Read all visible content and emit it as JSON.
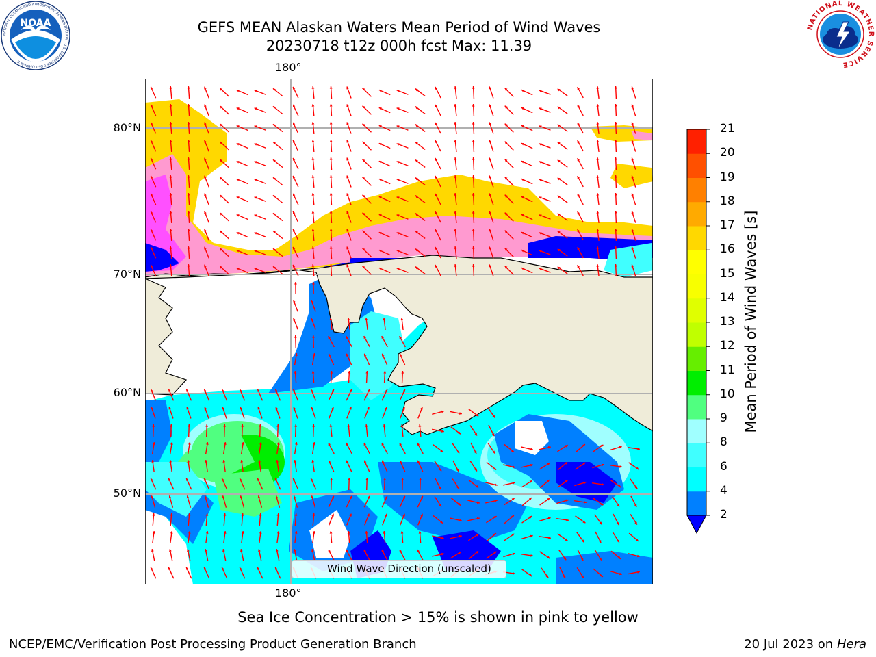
{
  "title": {
    "line1": "GEFS MEAN Alaskan Waters Mean Period of Wind Waves",
    "line2": "20230718 t12z 000h fcst   Max: 11.39"
  },
  "map": {
    "lon_labels_top": [
      "180°"
    ],
    "lon_labels_bottom": [
      "180°"
    ],
    "lat_labels": [
      "80°N",
      "70°N",
      "60°N",
      "50°N"
    ],
    "colors": {
      "land": "#efecd9",
      "ocean_empty": "#ffffff",
      "coast": "#000000",
      "grid": "#b0b0b0",
      "arrow": "#ff0000"
    }
  },
  "legend": {
    "label": "Wind Wave Direction (unscaled)"
  },
  "colorbar": {
    "title": "Mean Period of Wind Waves [s]",
    "levels": [
      2,
      4,
      6,
      8,
      9,
      10,
      11,
      12,
      13,
      14,
      15,
      16,
      17,
      18,
      19,
      20,
      21
    ],
    "colors": [
      "#0080ff",
      "#00ffff",
      "#40ffff",
      "#a0ffff",
      "#50ff80",
      "#00ee00",
      "#66ee00",
      "#c0ff00",
      "#e0ff00",
      "#f8ff00",
      "#ffff00",
      "#ffd800",
      "#ffaa00",
      "#ff8000",
      "#ff5000",
      "#ff2000"
    ],
    "under_color": "#0000ff"
  },
  "note": "Sea Ice Concentration > 15% is shown in pink to yellow",
  "footer": {
    "left": "NCEP/EMC/Verification Post Processing Product Generation Branch",
    "right_prefix": "20 Jul 2023 on ",
    "right_machine": "Hera"
  },
  "logos": {
    "noaa_text": "NOAA",
    "noaa_ring": "NATIONAL OCEANIC AND ATMOSPHERIC ADMINISTRATION · U.S. DEPARTMENT OF COMMERCE",
    "nws_ring": "NATIONAL WEATHER SERVICE"
  }
}
